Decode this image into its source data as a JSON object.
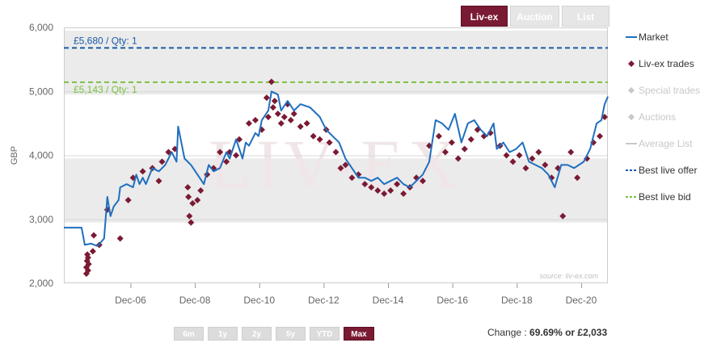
{
  "tabs": [
    {
      "label": "Liv-ex",
      "active": true
    },
    {
      "label": "Auction",
      "active": false
    },
    {
      "label": "List",
      "active": false
    }
  ],
  "range_buttons": [
    {
      "label": "6m",
      "active": false
    },
    {
      "label": "1y",
      "active": false
    },
    {
      "label": "2y",
      "active": false
    },
    {
      "label": "5y",
      "active": false
    },
    {
      "label": "YTD",
      "active": false
    },
    {
      "label": "Max",
      "active": true
    }
  ],
  "change": {
    "label": "Change :",
    "value": "69.69% or £2,033"
  },
  "colors": {
    "market": "#1f6fbf",
    "trades": "#7a1a33",
    "offer": "#1a5aa8",
    "bid": "#7cc142",
    "inactive_legend": "#c8c8c8",
    "band": "#ebebeb"
  },
  "chart_data": {
    "type": "line",
    "ylabel": "GBP",
    "ylim": [
      2000,
      6000
    ],
    "yticks": [
      "2,000",
      "3,000",
      "4,000",
      "5,000",
      "6,000"
    ],
    "x_range": [
      2004.85,
      2021.75
    ],
    "xticks": [
      {
        "label": "Dec-06",
        "x": 2006.92
      },
      {
        "label": "Dec-08",
        "x": 2008.92
      },
      {
        "label": "Dec-10",
        "x": 2010.92
      },
      {
        "label": "Dec-12",
        "x": 2012.92
      },
      {
        "label": "Dec-14",
        "x": 2014.92
      },
      {
        "label": "Dec-16",
        "x": 2016.92
      },
      {
        "label": "Dec-18",
        "x": 2018.92
      },
      {
        "label": "Dec-20",
        "x": 2020.92
      }
    ],
    "watermark": "LIV-EX",
    "source": "source: liv-ex.com",
    "bands": [
      [
        2950,
        3950
      ],
      [
        4950,
        5950
      ]
    ],
    "best_offer": {
      "value": 5680,
      "label": "£5,680 / Qty: 1"
    },
    "best_bid": {
      "value": 5143,
      "label": "£5,143 / Qty: 1"
    },
    "legend": [
      {
        "name": "Market",
        "symbol": "line",
        "enabled": true
      },
      {
        "name": "Liv-ex trades",
        "symbol": "diamond",
        "enabled": true
      },
      {
        "name": "Special trades",
        "symbol": "diamond",
        "enabled": false
      },
      {
        "name": "Auctions",
        "symbol": "diamond",
        "enabled": false
      },
      {
        "name": "Average List",
        "symbol": "line",
        "enabled": false
      },
      {
        "name": "Best live offer",
        "symbol": "dash",
        "enabled": true
      },
      {
        "name": "Best live bid",
        "symbol": "dash",
        "enabled": true
      }
    ],
    "series": [
      {
        "name": "Market",
        "points": [
          [
            2004.85,
            2870
          ],
          [
            2005.4,
            2870
          ],
          [
            2005.5,
            2600
          ],
          [
            2005.7,
            2620
          ],
          [
            2005.9,
            2580
          ],
          [
            2006.1,
            2700
          ],
          [
            2006.2,
            3350
          ],
          [
            2006.3,
            3050
          ],
          [
            2006.4,
            3200
          ],
          [
            2006.55,
            3300
          ],
          [
            2006.6,
            3500
          ],
          [
            2006.8,
            3550
          ],
          [
            2007.0,
            3500
          ],
          [
            2007.1,
            3700
          ],
          [
            2007.2,
            3550
          ],
          [
            2007.3,
            3650
          ],
          [
            2007.4,
            3550
          ],
          [
            2007.6,
            3800
          ],
          [
            2007.8,
            3750
          ],
          [
            2008.0,
            3850
          ],
          [
            2008.2,
            4050
          ],
          [
            2008.35,
            3900
          ],
          [
            2008.4,
            4450
          ],
          [
            2008.6,
            3950
          ],
          [
            2008.8,
            3850
          ],
          [
            2009.0,
            3700
          ],
          [
            2009.2,
            3550
          ],
          [
            2009.35,
            3850
          ],
          [
            2009.5,
            3750
          ],
          [
            2009.7,
            3800
          ],
          [
            2009.9,
            4050
          ],
          [
            2010.0,
            3950
          ],
          [
            2010.2,
            4250
          ],
          [
            2010.4,
            3950
          ],
          [
            2010.5,
            4200
          ],
          [
            2010.6,
            4150
          ],
          [
            2010.8,
            4350
          ],
          [
            2010.9,
            4300
          ],
          [
            2011.0,
            4550
          ],
          [
            2011.2,
            4700
          ],
          [
            2011.3,
            5000
          ],
          [
            2011.5,
            4950
          ],
          [
            2011.6,
            4700
          ],
          [
            2011.8,
            4850
          ],
          [
            2012.0,
            4700
          ],
          [
            2012.2,
            4800
          ],
          [
            2012.5,
            4750
          ],
          [
            2012.8,
            4600
          ],
          [
            2013.0,
            4400
          ],
          [
            2013.2,
            4300
          ],
          [
            2013.4,
            4200
          ],
          [
            2013.6,
            3950
          ],
          [
            2013.8,
            3800
          ],
          [
            2014.0,
            3650
          ],
          [
            2014.2,
            3650
          ],
          [
            2014.4,
            3600
          ],
          [
            2014.6,
            3650
          ],
          [
            2014.8,
            3550
          ],
          [
            2015.0,
            3600
          ],
          [
            2015.2,
            3650
          ],
          [
            2015.4,
            3550
          ],
          [
            2015.6,
            3500
          ],
          [
            2015.8,
            3600
          ],
          [
            2016.0,
            3700
          ],
          [
            2016.2,
            3900
          ],
          [
            2016.4,
            4550
          ],
          [
            2016.6,
            4500
          ],
          [
            2016.8,
            4400
          ],
          [
            2017.0,
            4650
          ],
          [
            2017.2,
            4200
          ],
          [
            2017.4,
            4500
          ],
          [
            2017.6,
            4550
          ],
          [
            2017.8,
            4400
          ],
          [
            2018.0,
            4300
          ],
          [
            2018.2,
            4500
          ],
          [
            2018.3,
            4100
          ],
          [
            2018.5,
            4200
          ],
          [
            2018.7,
            4050
          ],
          [
            2018.9,
            4100
          ],
          [
            2019.1,
            4200
          ],
          [
            2019.3,
            3900
          ],
          [
            2019.5,
            3850
          ],
          [
            2019.7,
            3800
          ],
          [
            2019.9,
            3700
          ],
          [
            2020.1,
            3500
          ],
          [
            2020.3,
            3850
          ],
          [
            2020.5,
            3850
          ],
          [
            2020.7,
            3800
          ],
          [
            2020.85,
            3850
          ],
          [
            2021.0,
            3900
          ],
          [
            2021.2,
            4100
          ],
          [
            2021.4,
            4500
          ],
          [
            2021.55,
            4550
          ],
          [
            2021.65,
            4800
          ],
          [
            2021.75,
            4920
          ]
        ]
      },
      {
        "name": "Liv-ex trades",
        "points": [
          [
            2005.55,
            2150
          ],
          [
            2005.55,
            2250
          ],
          [
            2005.57,
            2350
          ],
          [
            2005.58,
            2450
          ],
          [
            2005.6,
            2200
          ],
          [
            2005.6,
            2400
          ],
          [
            2005.62,
            2300
          ],
          [
            2005.75,
            2500
          ],
          [
            2005.78,
            2750
          ],
          [
            2005.95,
            2600
          ],
          [
            2006.2,
            3150
          ],
          [
            2006.6,
            2700
          ],
          [
            2006.85,
            3300
          ],
          [
            2007.0,
            3650
          ],
          [
            2007.3,
            3750
          ],
          [
            2007.6,
            3800
          ],
          [
            2007.8,
            3600
          ],
          [
            2007.9,
            3900
          ],
          [
            2008.1,
            4050
          ],
          [
            2008.3,
            4100
          ],
          [
            2008.7,
            3500
          ],
          [
            2008.72,
            3350
          ],
          [
            2008.75,
            3050
          ],
          [
            2008.8,
            2950
          ],
          [
            2008.85,
            3250
          ],
          [
            2009.0,
            3300
          ],
          [
            2009.1,
            3450
          ],
          [
            2009.3,
            3700
          ],
          [
            2009.5,
            3800
          ],
          [
            2009.7,
            4050
          ],
          [
            2009.9,
            3900
          ],
          [
            2010.0,
            4050
          ],
          [
            2010.2,
            4000
          ],
          [
            2010.3,
            4250
          ],
          [
            2010.6,
            4500
          ],
          [
            2010.8,
            4550
          ],
          [
            2011.0,
            4400
          ],
          [
            2011.15,
            4900
          ],
          [
            2011.2,
            4600
          ],
          [
            2011.3,
            5150
          ],
          [
            2011.35,
            4750
          ],
          [
            2011.4,
            4850
          ],
          [
            2011.5,
            4650
          ],
          [
            2011.6,
            4500
          ],
          [
            2011.7,
            4600
          ],
          [
            2011.8,
            4800
          ],
          [
            2011.9,
            4550
          ],
          [
            2012.0,
            4650
          ],
          [
            2012.2,
            4450
          ],
          [
            2012.4,
            4500
          ],
          [
            2012.6,
            4300
          ],
          [
            2012.8,
            4250
          ],
          [
            2013.0,
            4400
          ],
          [
            2013.1,
            4200
          ],
          [
            2013.3,
            4050
          ],
          [
            2013.45,
            3800
          ],
          [
            2013.6,
            3850
          ],
          [
            2013.8,
            3650
          ],
          [
            2014.0,
            3700
          ],
          [
            2014.2,
            3550
          ],
          [
            2014.4,
            3500
          ],
          [
            2014.6,
            3450
          ],
          [
            2014.8,
            3400
          ],
          [
            2015.0,
            3450
          ],
          [
            2015.2,
            3550
          ],
          [
            2015.4,
            3400
          ],
          [
            2015.6,
            3500
          ],
          [
            2015.8,
            3650
          ],
          [
            2016.0,
            3600
          ],
          [
            2016.2,
            4150
          ],
          [
            2016.5,
            4300
          ],
          [
            2016.7,
            4050
          ],
          [
            2016.9,
            4200
          ],
          [
            2017.1,
            3950
          ],
          [
            2017.3,
            4100
          ],
          [
            2017.5,
            4250
          ],
          [
            2017.7,
            4400
          ],
          [
            2017.9,
            4300
          ],
          [
            2018.1,
            4350
          ],
          [
            2018.4,
            4150
          ],
          [
            2018.6,
            4000
          ],
          [
            2018.8,
            3900
          ],
          [
            2019.0,
            4000
          ],
          [
            2019.2,
            3800
          ],
          [
            2019.4,
            3950
          ],
          [
            2019.6,
            4050
          ],
          [
            2019.8,
            3850
          ],
          [
            2020.0,
            3650
          ],
          [
            2020.2,
            3800
          ],
          [
            2020.35,
            3050
          ],
          [
            2020.6,
            4050
          ],
          [
            2020.8,
            3650
          ],
          [
            2021.1,
            3950
          ],
          [
            2021.3,
            4200
          ],
          [
            2021.5,
            4300
          ],
          [
            2021.65,
            4600
          ]
        ]
      }
    ]
  }
}
